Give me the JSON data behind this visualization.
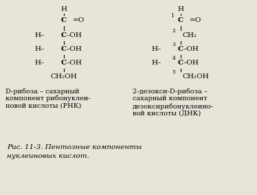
{
  "bg_color": "#e8e4d8",
  "title_caption": "Рис. 11-3. Пентозные компоненты\nнуклеиновых кислот.",
  "left_label_line1": "D-рибоза – сахарный",
  "left_label_line2": "компонент рибонуклеи-",
  "left_label_line3": "новой кислоты (РНК)",
  "right_label_line1": "2-дезокси-D-рибоза –",
  "right_label_line2": "сахарный компонент",
  "right_label_line3": "дезоксирибонуклеино-",
  "right_label_line4": "вой кислоты (ДНК)",
  "fs": 7.5,
  "fs_label": 7.0,
  "fs_caption": 7.5,
  "fs_super": 5.5
}
